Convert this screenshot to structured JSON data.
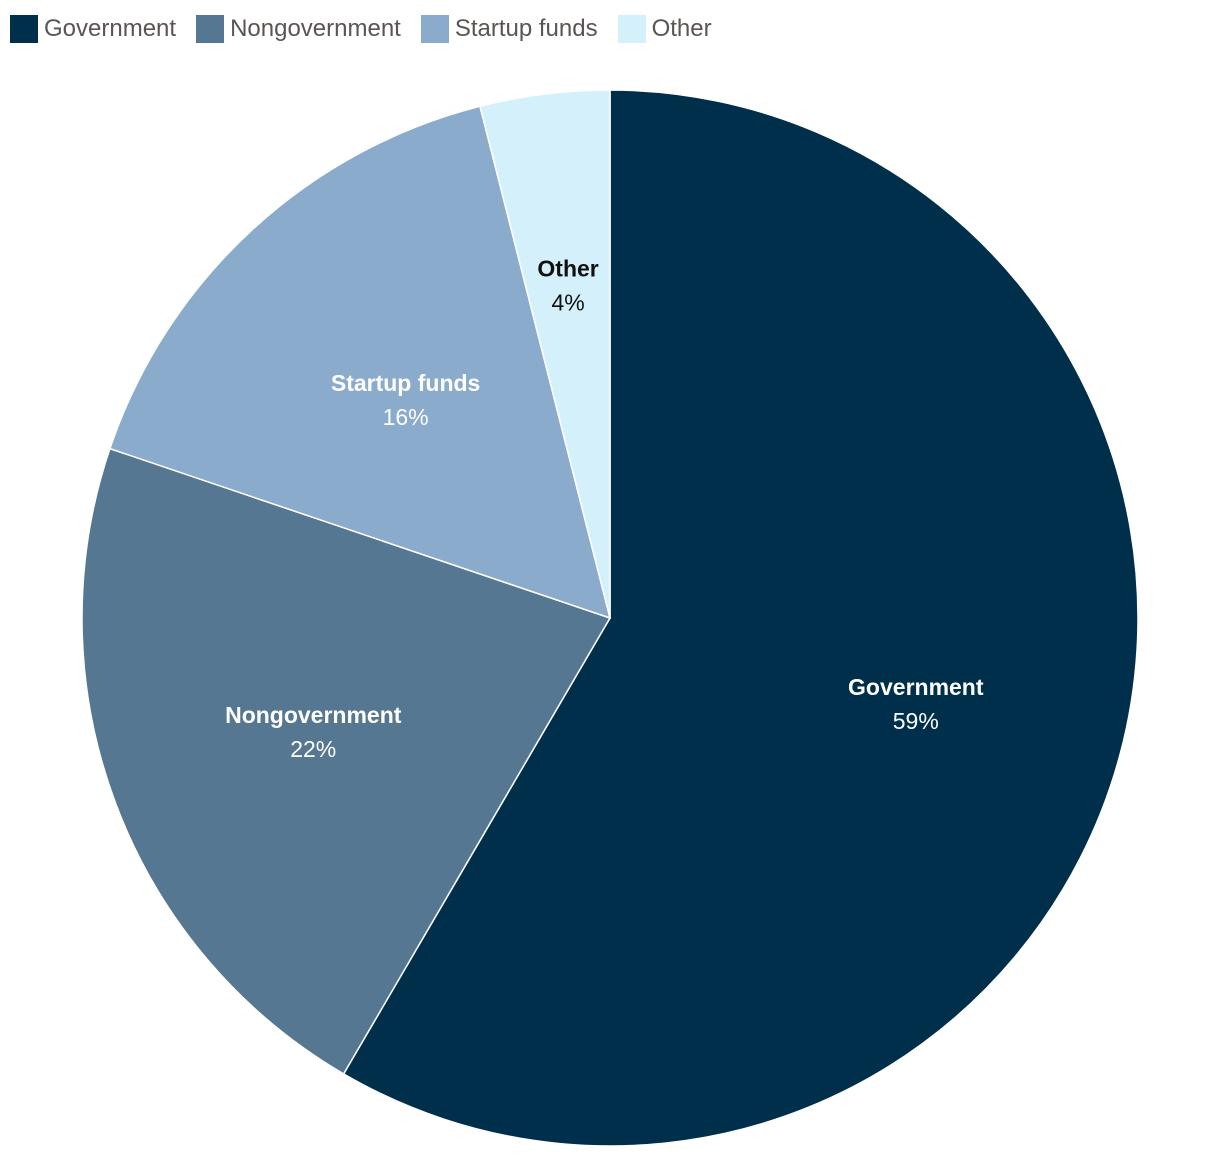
{
  "chart_data": {
    "type": "pie",
    "slices": [
      {
        "name": "Government",
        "value": 59,
        "label": "59%",
        "color": "#002f4b",
        "text_color": "#ffffff"
      },
      {
        "name": "Nongovernment",
        "value": 22,
        "label": "22%",
        "color": "#557791",
        "text_color": "#ffffff"
      },
      {
        "name": "Startup funds",
        "value": 16,
        "label": "16%",
        "color": "#8aabcc",
        "text_color": "#ffffff"
      },
      {
        "name": "Other",
        "value": 4,
        "label": "4%",
        "color": "#d4f1fb",
        "text_color": "#111111"
      }
    ],
    "start_angle": "12 o'clock",
    "direction": "clockwise",
    "legend_position": "top-left"
  }
}
